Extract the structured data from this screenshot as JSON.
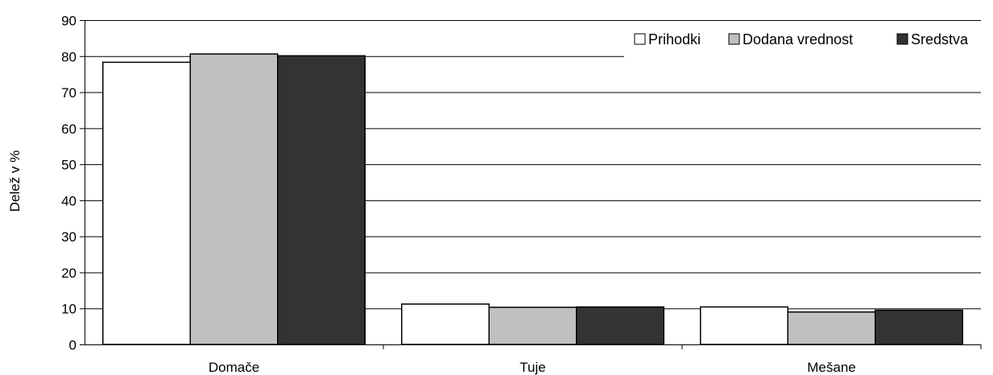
{
  "chart_data": {
    "type": "bar",
    "title": "",
    "xlabel": "",
    "ylabel": "Delež v %",
    "ylim": [
      0,
      90
    ],
    "yticks": [
      0,
      10,
      20,
      30,
      40,
      50,
      60,
      70,
      80,
      90
    ],
    "categories": [
      "Domače",
      "Tuje",
      "Mešane"
    ],
    "series": [
      {
        "name": "Prihodki",
        "values": [
          78.3,
          11.2,
          10.4
        ],
        "color": "#ffffff"
      },
      {
        "name": "Dodana vrednost",
        "values": [
          80.6,
          10.3,
          9.0
        ],
        "color": "#c0c0c0"
      },
      {
        "name": "Sredstva",
        "values": [
          80.1,
          10.4,
          9.5
        ],
        "color": "#333333"
      }
    ],
    "grid": true,
    "legend_position": "top-right"
  }
}
